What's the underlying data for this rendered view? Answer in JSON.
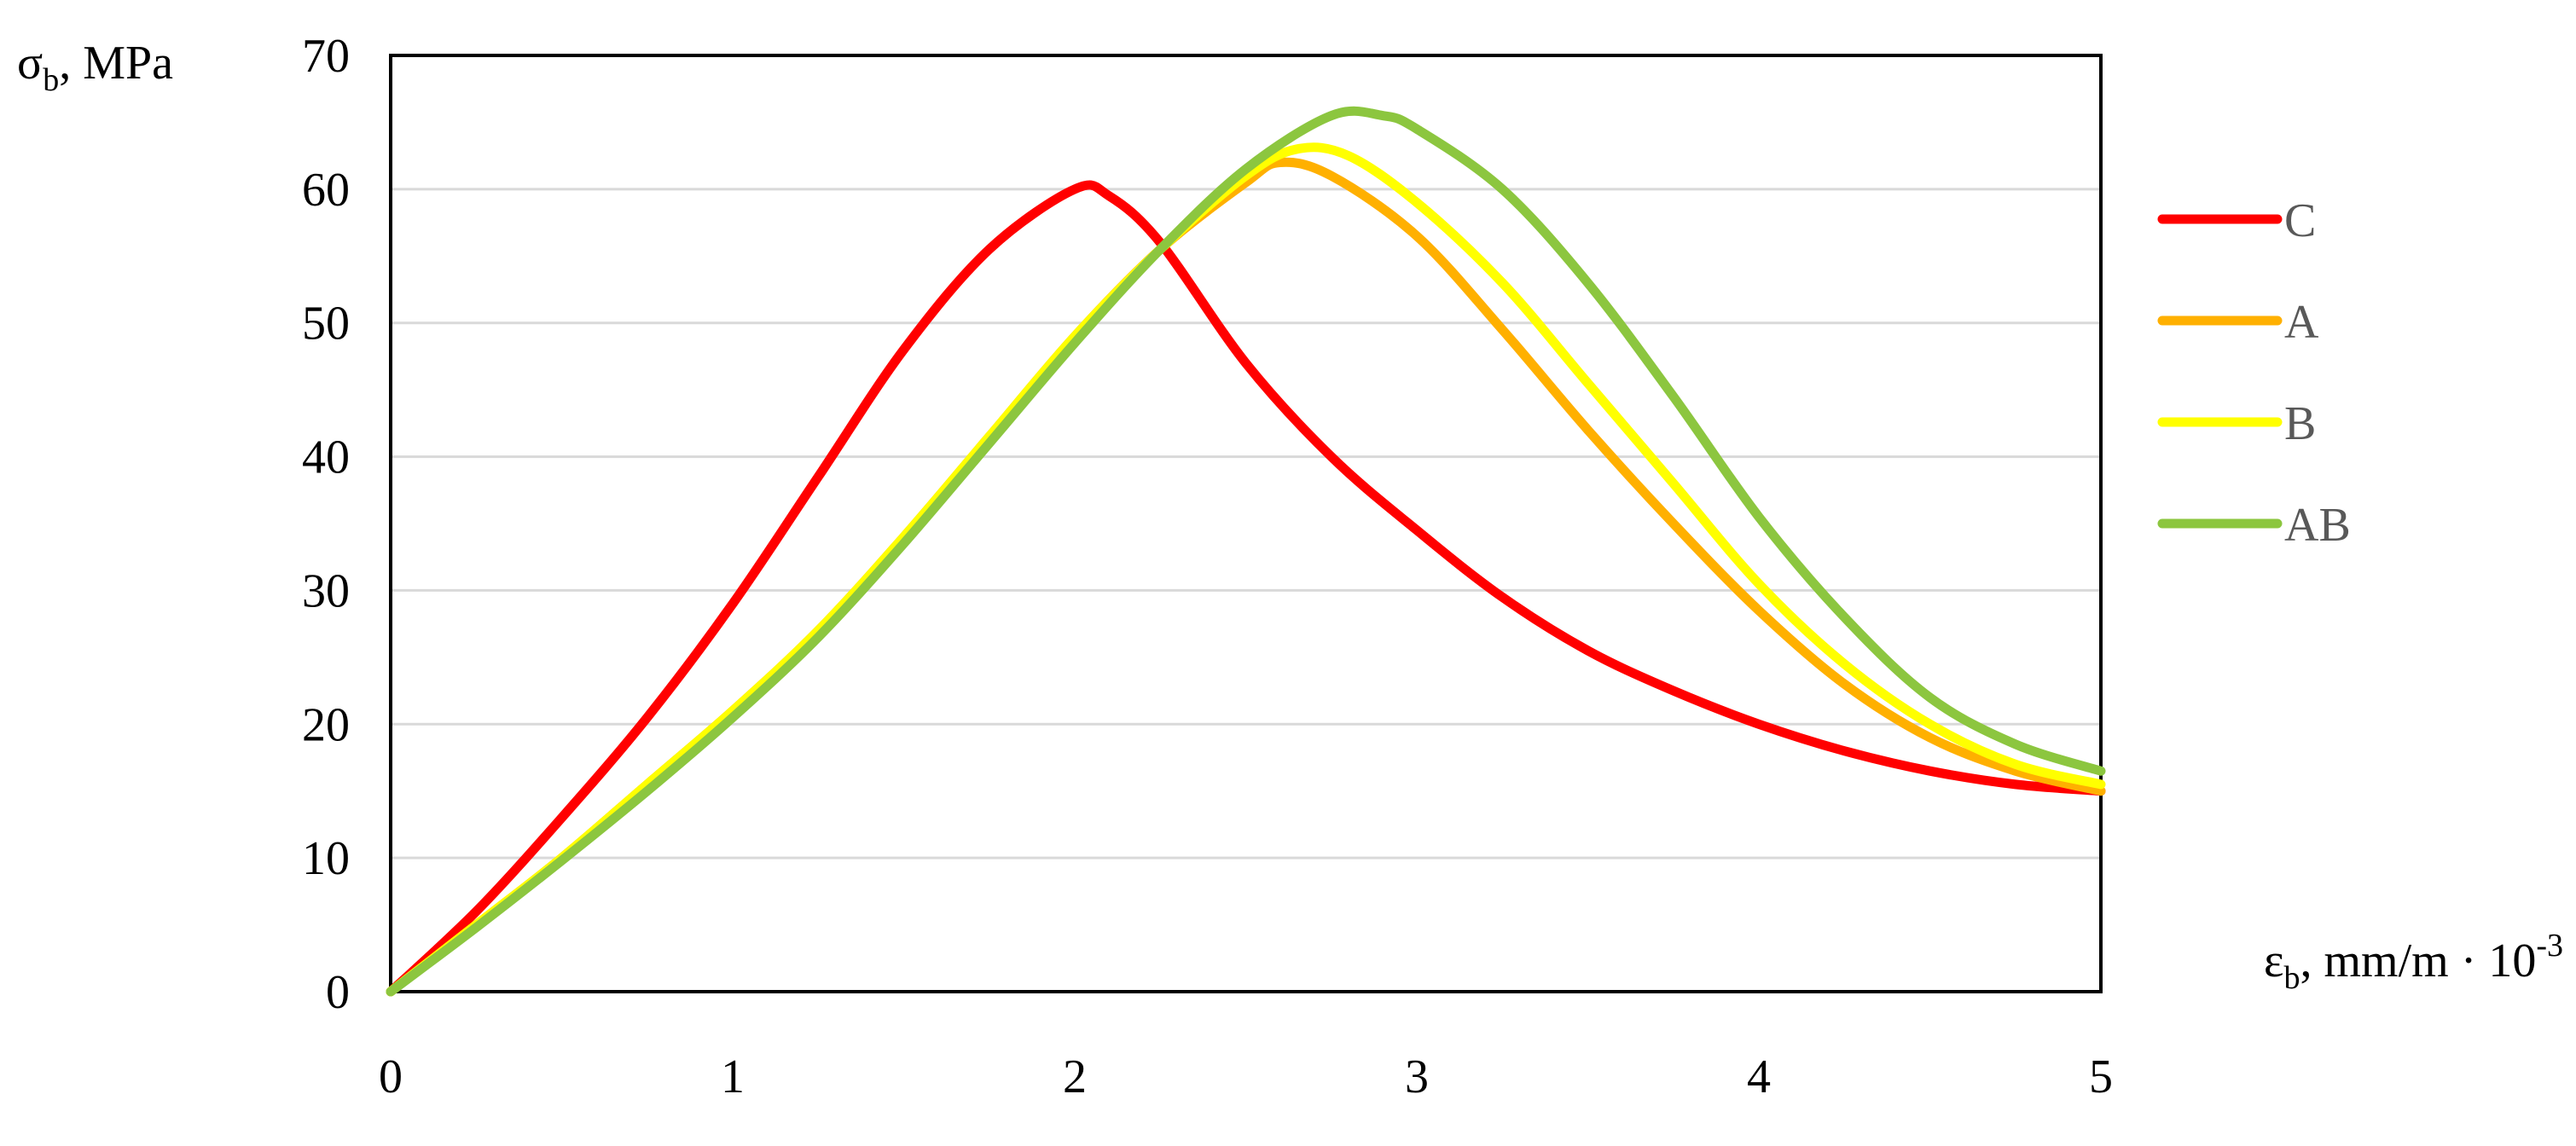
{
  "chart_data": {
    "type": "line",
    "title": "",
    "ylabel": {
      "main": "σ",
      "sub": "b",
      "rest": ", MPa"
    },
    "xlabel": {
      "main": "ε",
      "sub": "b",
      "rest": ", mm/m · 10",
      "sup": "-3"
    },
    "xlim": [
      0,
      5
    ],
    "ylim": [
      0,
      70
    ],
    "x_ticks": [
      "0",
      "1",
      "2",
      "3",
      "4",
      "5"
    ],
    "y_ticks": [
      "0",
      "10",
      "20",
      "30",
      "40",
      "50",
      "60",
      "70"
    ],
    "grid": true,
    "legend_position": "right",
    "series": [
      {
        "name": "C",
        "color": "#ff0000",
        "points": [
          [
            0,
            0
          ],
          [
            0.25,
            6
          ],
          [
            0.5,
            13
          ],
          [
            0.75,
            20.5
          ],
          [
            1,
            29
          ],
          [
            1.25,
            38.5
          ],
          [
            1.5,
            48
          ],
          [
            1.75,
            55.5
          ],
          [
            2,
            60
          ],
          [
            2.1,
            59.5
          ],
          [
            2.25,
            56
          ],
          [
            2.5,
            47
          ],
          [
            2.75,
            40
          ],
          [
            3,
            34.5
          ],
          [
            3.25,
            29.5
          ],
          [
            3.5,
            25.5
          ],
          [
            3.75,
            22.5
          ],
          [
            4,
            20
          ],
          [
            4.25,
            18
          ],
          [
            4.5,
            16.5
          ],
          [
            4.75,
            15.5
          ],
          [
            5,
            15
          ]
        ]
      },
      {
        "name": "A",
        "color": "#ffb000",
        "points": [
          [
            0,
            0
          ],
          [
            0.25,
            5
          ],
          [
            0.5,
            10
          ],
          [
            0.75,
            15.5
          ],
          [
            1,
            21
          ],
          [
            1.25,
            27
          ],
          [
            1.5,
            34
          ],
          [
            1.75,
            41.5
          ],
          [
            2,
            49
          ],
          [
            2.25,
            55.5
          ],
          [
            2.5,
            60.5
          ],
          [
            2.6,
            62
          ],
          [
            2.75,
            61
          ],
          [
            3,
            56.5
          ],
          [
            3.25,
            49.5
          ],
          [
            3.5,
            42
          ],
          [
            3.75,
            35
          ],
          [
            4,
            28.5
          ],
          [
            4.25,
            23
          ],
          [
            4.5,
            19
          ],
          [
            4.75,
            16.5
          ],
          [
            5,
            15
          ]
        ]
      },
      {
        "name": "B",
        "color": "#ffff00",
        "points": [
          [
            0,
            0
          ],
          [
            0.25,
            5
          ],
          [
            0.5,
            10
          ],
          [
            0.75,
            15.5
          ],
          [
            1,
            21
          ],
          [
            1.25,
            27
          ],
          [
            1.5,
            34
          ],
          [
            1.75,
            41.5
          ],
          [
            2,
            49
          ],
          [
            2.25,
            55.5
          ],
          [
            2.5,
            61
          ],
          [
            2.65,
            63
          ],
          [
            2.8,
            62.5
          ],
          [
            3,
            59
          ],
          [
            3.25,
            53
          ],
          [
            3.5,
            45.5
          ],
          [
            3.75,
            38
          ],
          [
            4,
            30.5
          ],
          [
            4.25,
            24.5
          ],
          [
            4.5,
            20
          ],
          [
            4.75,
            17
          ],
          [
            5,
            15.5
          ]
        ]
      },
      {
        "name": "AB",
        "color": "#8cc63f",
        "points": [
          [
            0,
            0
          ],
          [
            0.25,
            4.8
          ],
          [
            0.5,
            9.8
          ],
          [
            0.75,
            15
          ],
          [
            1,
            20.5
          ],
          [
            1.25,
            26.5
          ],
          [
            1.5,
            33.5
          ],
          [
            1.75,
            41
          ],
          [
            2,
            48.5
          ],
          [
            2.25,
            55.5
          ],
          [
            2.5,
            61.5
          ],
          [
            2.75,
            65.5
          ],
          [
            2.9,
            65.5
          ],
          [
            3,
            64.5
          ],
          [
            3.25,
            60
          ],
          [
            3.5,
            53
          ],
          [
            3.75,
            44.5
          ],
          [
            4,
            35.5
          ],
          [
            4.25,
            28
          ],
          [
            4.5,
            22
          ],
          [
            4.75,
            18.5
          ],
          [
            5,
            16.5
          ]
        ]
      }
    ]
  }
}
